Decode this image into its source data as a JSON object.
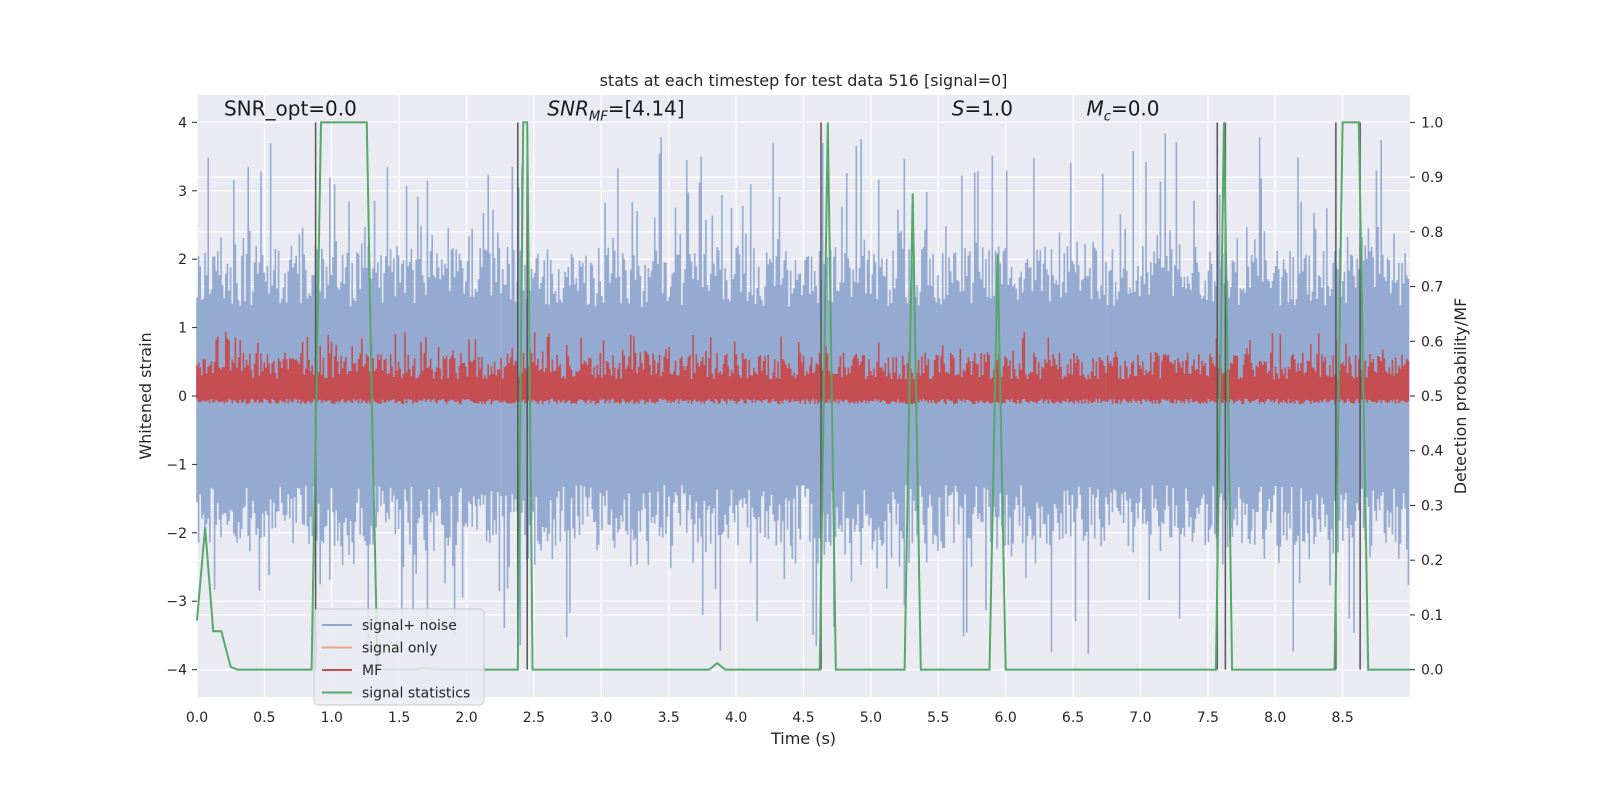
{
  "chart_data": {
    "type": "line",
    "title": "stats at each timestep for test data 516 [signal=0]",
    "xlabel": "Time (s)",
    "ylabel": "Whitened strain",
    "ylabel_right": "Detection probability/MF",
    "xlim": [
      0.0,
      9.0
    ],
    "ylim": [
      -4.4,
      4.4
    ],
    "ylim_right": [
      -0.05,
      1.05
    ],
    "x_ticks": [
      "0.0",
      "0.5",
      "1.0",
      "1.5",
      "2.0",
      "2.5",
      "3.0",
      "3.5",
      "4.0",
      "4.5",
      "5.0",
      "5.5",
      "6.0",
      "6.5",
      "7.0",
      "7.5",
      "8.0",
      "8.5"
    ],
    "y_ticks": [
      "−4",
      "−3",
      "−2",
      "−1",
      "0",
      "1",
      "2",
      "3",
      "4"
    ],
    "y_right_ticks": [
      "0.0",
      "0.1",
      "0.2",
      "0.3",
      "0.4",
      "0.5",
      "0.6",
      "0.7",
      "0.8",
      "0.9",
      "1.0"
    ],
    "grid": true,
    "annotations": [
      {
        "text": "SNR_opt=0.0",
        "x": 0.2,
        "y": 4.1
      },
      {
        "text": "SNR_MF=[4.14]",
        "x": 2.6,
        "y": 4.1
      },
      {
        "text": "S=1.0",
        "x": 5.6,
        "y": 4.1
      },
      {
        "text": "M_c=0.0",
        "x": 6.6,
        "y": 4.1
      }
    ],
    "legend": {
      "placement": "lower-left",
      "entries": [
        {
          "label": "signal+ noise",
          "color": "#8fa6cf"
        },
        {
          "label": "signal only",
          "color": "#e8a58a"
        },
        {
          "label": "MF",
          "color": "#c44e52"
        },
        {
          "label": "signal statistics",
          "color": "#55a868"
        }
      ]
    },
    "series": [
      {
        "name": "signal statistics",
        "axis": "right",
        "color": "#55a868",
        "x": [
          0.0,
          0.06,
          0.12,
          0.18,
          0.25,
          0.3,
          0.85,
          0.92,
          0.95,
          1.22,
          1.26,
          1.3,
          1.34,
          1.5,
          1.62,
          1.68,
          1.8,
          2.38,
          2.42,
          2.45,
          2.49,
          2.5,
          3.8,
          3.86,
          3.92,
          4.62,
          4.68,
          4.74,
          5.25,
          5.31,
          5.37,
          5.88,
          5.94,
          6.0,
          7.56,
          7.62,
          7.68,
          8.44,
          8.5,
          8.62,
          8.69,
          9.0
        ],
        "y": [
          0.09,
          0.26,
          0.07,
          0.07,
          0.005,
          0.0,
          0.0,
          1.0,
          1.0,
          1.0,
          1.0,
          0.45,
          0.0,
          0.0,
          0.0,
          0.003,
          0.0,
          0.0,
          1.0,
          1.0,
          0.0,
          0.0,
          0.0,
          0.012,
          0.0,
          0.0,
          1.0,
          0.0,
          0.0,
          0.87,
          0.0,
          0.0,
          0.76,
          0.0,
          0.0,
          1.0,
          0.0,
          0.0,
          1.0,
          1.0,
          0.0,
          0.0
        ]
      }
    ],
    "vertical_lines": [
      {
        "color": "#555555",
        "x": [
          0.88,
          2.38,
          2.45,
          4.63,
          7.57,
          7.63,
          8.45,
          8.63
        ]
      }
    ],
    "noise_envelope": {
      "name": "signal+ noise",
      "axis": "left",
      "color": "#8fa6cf",
      "core_range": [
        -1.3,
        1.3
      ],
      "peak_max": 3.9,
      "peak_min": -3.8
    },
    "mf_band": {
      "name": "MF",
      "axis": "right",
      "color": "#c44e52",
      "baseline": 0.5,
      "typical_max": 0.58,
      "peak_max": 0.62
    }
  }
}
